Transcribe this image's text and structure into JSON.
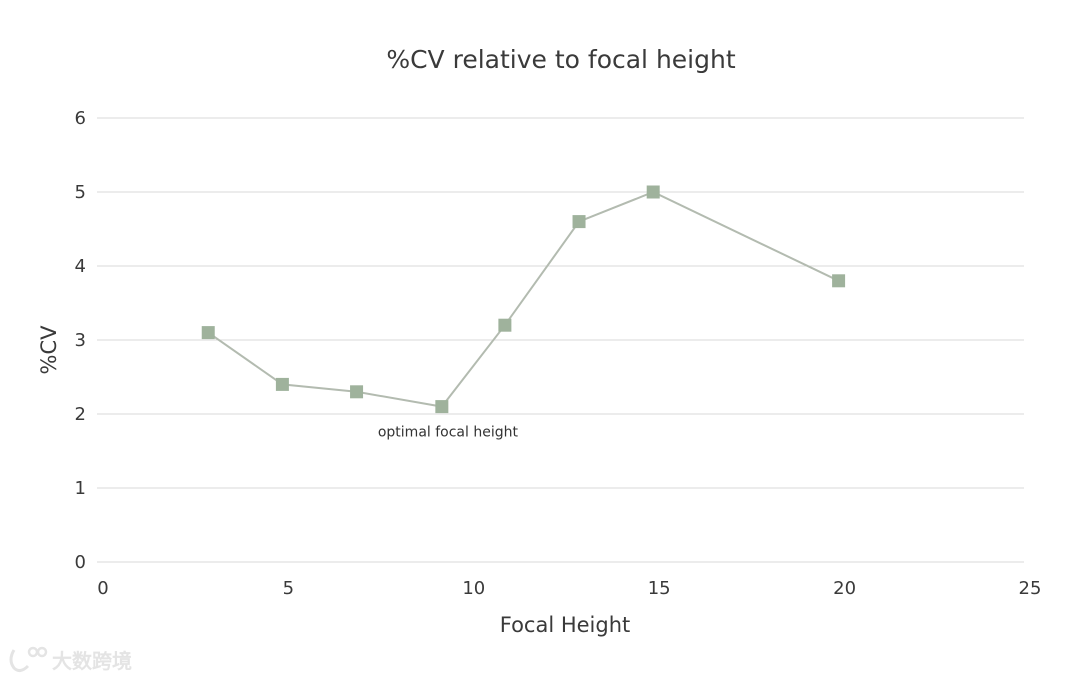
{
  "chart_data": {
    "type": "line",
    "title": "%CV relative to focal height",
    "xlabel": "Focal Height",
    "ylabel": "%CV",
    "xlim": [
      0,
      25
    ],
    "ylim": [
      0,
      6
    ],
    "xticks": [
      0,
      5,
      10,
      15,
      20,
      25
    ],
    "yticks": [
      0,
      1,
      2,
      3,
      4,
      5,
      6
    ],
    "grid": true,
    "series": [
      {
        "x": [
          3,
          5,
          7,
          9.3,
          11,
          13,
          15,
          20
        ],
        "y": [
          3.1,
          2.4,
          2.3,
          2.1,
          3.2,
          4.6,
          5.0,
          3.8
        ]
      }
    ],
    "annotations": [
      {
        "text": "optimal focal height",
        "x": 9.3,
        "y": 2.1
      }
    ],
    "colors": {
      "line": "#b3bbb0",
      "marker": "#9fb29c",
      "grid": "#d9d9d9"
    }
  },
  "watermark": {
    "text": "大数跨境",
    "icon": "logo-icon"
  }
}
